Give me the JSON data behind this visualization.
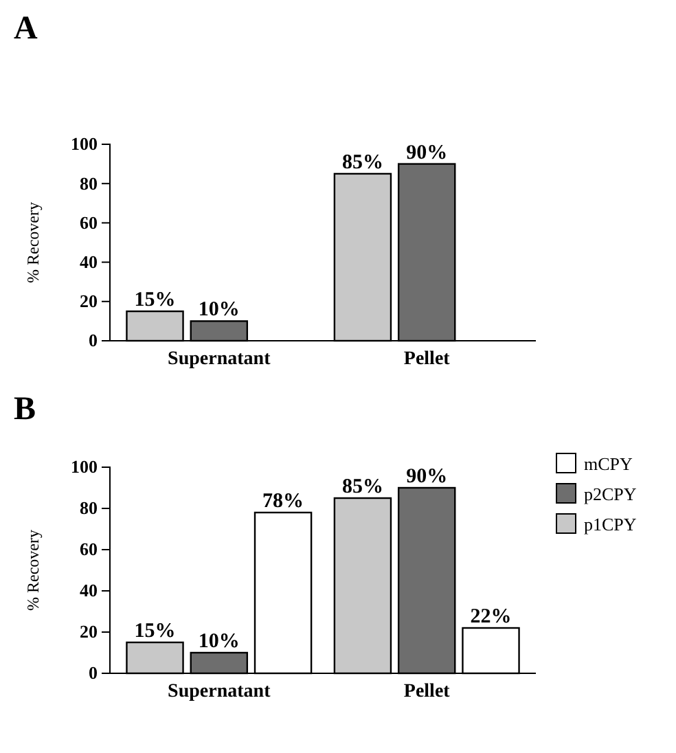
{
  "chart_data": [
    {
      "type": "bar",
      "title": "A",
      "ylabel": "% Recovery",
      "categories": [
        "Supernatant",
        "Pellet"
      ],
      "ylim": [
        0,
        100
      ],
      "yticks": [
        0,
        20,
        40,
        60,
        80,
        100
      ],
      "legend": false,
      "series": [
        {
          "color": "#c8c8c8",
          "values": [
            15,
            85
          ],
          "value_labels": [
            "15%",
            "85%"
          ]
        },
        {
          "color": "#6e6e6e",
          "values": [
            10,
            90
          ],
          "value_labels": [
            "10%",
            "90%"
          ]
        }
      ]
    },
    {
      "type": "bar",
      "title": "B",
      "ylabel": "% Recovery",
      "categories": [
        "Supernatant",
        "Pellet"
      ],
      "ylim": [
        0,
        100
      ],
      "yticks": [
        0,
        20,
        40,
        60,
        80,
        100
      ],
      "legend": "top right",
      "series": [
        {
          "name": "p1CPY",
          "color": "#c8c8c8",
          "values": [
            15,
            85
          ],
          "value_labels": [
            "15%",
            "85%"
          ]
        },
        {
          "name": "p2CPY",
          "color": "#6e6e6e",
          "values": [
            10,
            90
          ],
          "value_labels": [
            "10%",
            "90%"
          ]
        },
        {
          "name": "mCPY",
          "color": "#ffffff",
          "values": [
            78,
            22
          ],
          "value_labels": [
            "78%",
            "22%"
          ]
        }
      ]
    }
  ]
}
